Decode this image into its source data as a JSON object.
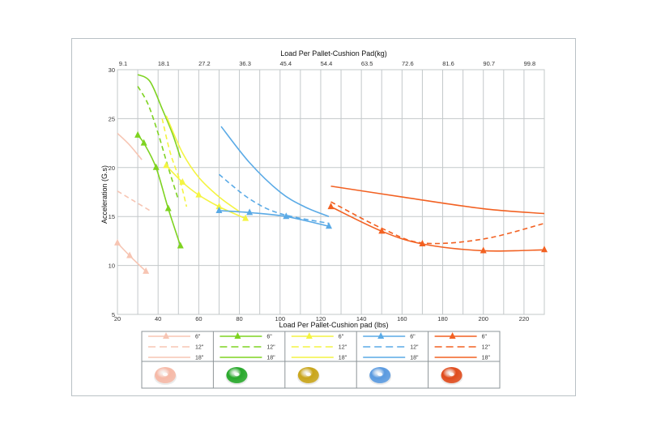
{
  "chart_data": {
    "type": "line",
    "title": "",
    "top_axis_title": "Load Per Pallet-Cushion Pad(kg)",
    "bottom_axis_title": "Load Per Pallet-Cushion pad (lbs)",
    "ylabel": "Acceleration (G.s)",
    "xlim": [
      20,
      230
    ],
    "ylim": [
      5,
      30
    ],
    "x_ticks": [
      20,
      40,
      60,
      80,
      100,
      120,
      140,
      160,
      180,
      200,
      220
    ],
    "x_tick_labels": [
      "20",
      "40",
      "60",
      "80",
      "100",
      "120",
      "140",
      "160",
      "180",
      "200",
      "220"
    ],
    "y_ticks": [
      5,
      10,
      15,
      20,
      25,
      30
    ],
    "y_tick_labels": [
      "5",
      "10",
      "15",
      "20",
      "25",
      "30"
    ],
    "top_ticks": [
      20,
      40,
      60,
      80,
      100,
      120,
      140,
      160,
      180,
      200,
      220
    ],
    "top_tick_labels": [
      "9.1",
      "18.1",
      "27.2",
      "36.3",
      "45.4",
      "54.4",
      "63.5",
      "72.6",
      "81.6",
      "90.7",
      "99.8"
    ],
    "grid": true,
    "series": [
      {
        "group": "peach",
        "color": "#f7c5b3",
        "dash": "6\"",
        "marker": true,
        "x": [
          20,
          26,
          34
        ],
        "y": [
          12.3,
          11.0,
          9.4
        ]
      },
      {
        "group": "peach",
        "color": "#f7c5b3",
        "dash": "12\"",
        "marker": false,
        "x": [
          20,
          28,
          36
        ],
        "y": [
          17.6,
          16.6,
          15.6
        ]
      },
      {
        "group": "peach",
        "color": "#f7c5b3",
        "dash": "18\"",
        "marker": false,
        "x": [
          20,
          26,
          32
        ],
        "y": [
          23.5,
          22.3,
          20.8
        ]
      },
      {
        "group": "green",
        "color": "#7ed321",
        "dash": "6\"",
        "marker": true,
        "x": [
          30,
          33,
          39,
          45,
          51
        ],
        "y": [
          23.3,
          22.5,
          20.0,
          15.8,
          12.0
        ]
      },
      {
        "group": "green",
        "color": "#7ed321",
        "dash": "12\"",
        "marker": false,
        "x": [
          30,
          35,
          40,
          45,
          50
        ],
        "y": [
          28.3,
          26.5,
          23.5,
          20.0,
          16.7
        ]
      },
      {
        "group": "green",
        "color": "#7ed321",
        "dash": "18\"",
        "marker": false,
        "x": [
          30,
          36,
          42,
          47,
          51
        ],
        "y": [
          29.5,
          28.8,
          26.0,
          23.5,
          21.0
        ]
      },
      {
        "group": "yellow",
        "color": "#f4f442",
        "dash": "6\"",
        "marker": true,
        "x": [
          44,
          52,
          60,
          70,
          83
        ],
        "y": [
          20.2,
          18.5,
          17.2,
          16.0,
          14.8
        ]
      },
      {
        "group": "yellow",
        "color": "#f4f442",
        "dash": "12\"",
        "marker": false,
        "x": [
          42,
          46,
          51,
          54
        ],
        "y": [
          25.0,
          21.5,
          18.5,
          16.0
        ]
      },
      {
        "group": "yellow",
        "color": "#f4f442",
        "dash": "18\"",
        "marker": false,
        "x": [
          44,
          52,
          60,
          70,
          80
        ],
        "y": [
          25.3,
          21.5,
          19.0,
          17.0,
          15.5
        ]
      },
      {
        "group": "blue",
        "color": "#5aaae6",
        "dash": "6\"",
        "marker": true,
        "x": [
          70,
          85,
          103,
          124
        ],
        "y": [
          15.6,
          15.4,
          15.0,
          14.0
        ]
      },
      {
        "group": "blue",
        "color": "#5aaae6",
        "dash": "12\"",
        "marker": false,
        "x": [
          70,
          85,
          100,
          124
        ],
        "y": [
          19.3,
          16.8,
          15.3,
          14.3
        ]
      },
      {
        "group": "blue",
        "color": "#5aaae6",
        "dash": "18\"",
        "marker": false,
        "x": [
          71,
          85,
          100,
          112,
          124
        ],
        "y": [
          24.2,
          20.5,
          17.5,
          16.0,
          15.0
        ]
      },
      {
        "group": "orange",
        "color": "#f26122",
        "dash": "6\"",
        "marker": true,
        "x": [
          125,
          150,
          170,
          200,
          230
        ],
        "y": [
          16.0,
          13.5,
          12.2,
          11.5,
          11.6
        ]
      },
      {
        "group": "orange",
        "color": "#f26122",
        "dash": "12\"",
        "marker": false,
        "x": [
          125,
          150,
          170,
          200,
          230
        ],
        "y": [
          16.5,
          13.8,
          12.3,
          12.7,
          14.3
        ]
      },
      {
        "group": "orange",
        "color": "#f26122",
        "dash": "18\"",
        "marker": false,
        "x": [
          125,
          160,
          200,
          230
        ],
        "y": [
          18.1,
          17.0,
          15.8,
          15.3
        ]
      }
    ],
    "legend": {
      "placement": "bottom",
      "groups": [
        {
          "color": "#f7c5b3",
          "puck_color": "#f6b9a7",
          "entries": [
            "6\"",
            "12\"",
            "18\""
          ],
          "image": "cushion-pad-peach"
        },
        {
          "color": "#7ed321",
          "puck_color": "#27a82a",
          "entries": [
            "6\"",
            "12\"",
            "18\""
          ],
          "image": "cushion-pad-green"
        },
        {
          "color": "#f4f442",
          "puck_color": "#c9a51a",
          "entries": [
            "6\"",
            "12\"",
            "18\""
          ],
          "image": "cushion-pad-gold"
        },
        {
          "color": "#5aaae6",
          "puck_color": "#5a9ae0",
          "entries": [
            "6\"",
            "12\"",
            "18\""
          ],
          "image": "cushion-pad-blue"
        },
        {
          "color": "#f26122",
          "puck_color": "#e04b1c",
          "entries": [
            "6\"",
            "12\"",
            "18\""
          ],
          "image": "cushion-pad-orange"
        }
      ]
    }
  }
}
